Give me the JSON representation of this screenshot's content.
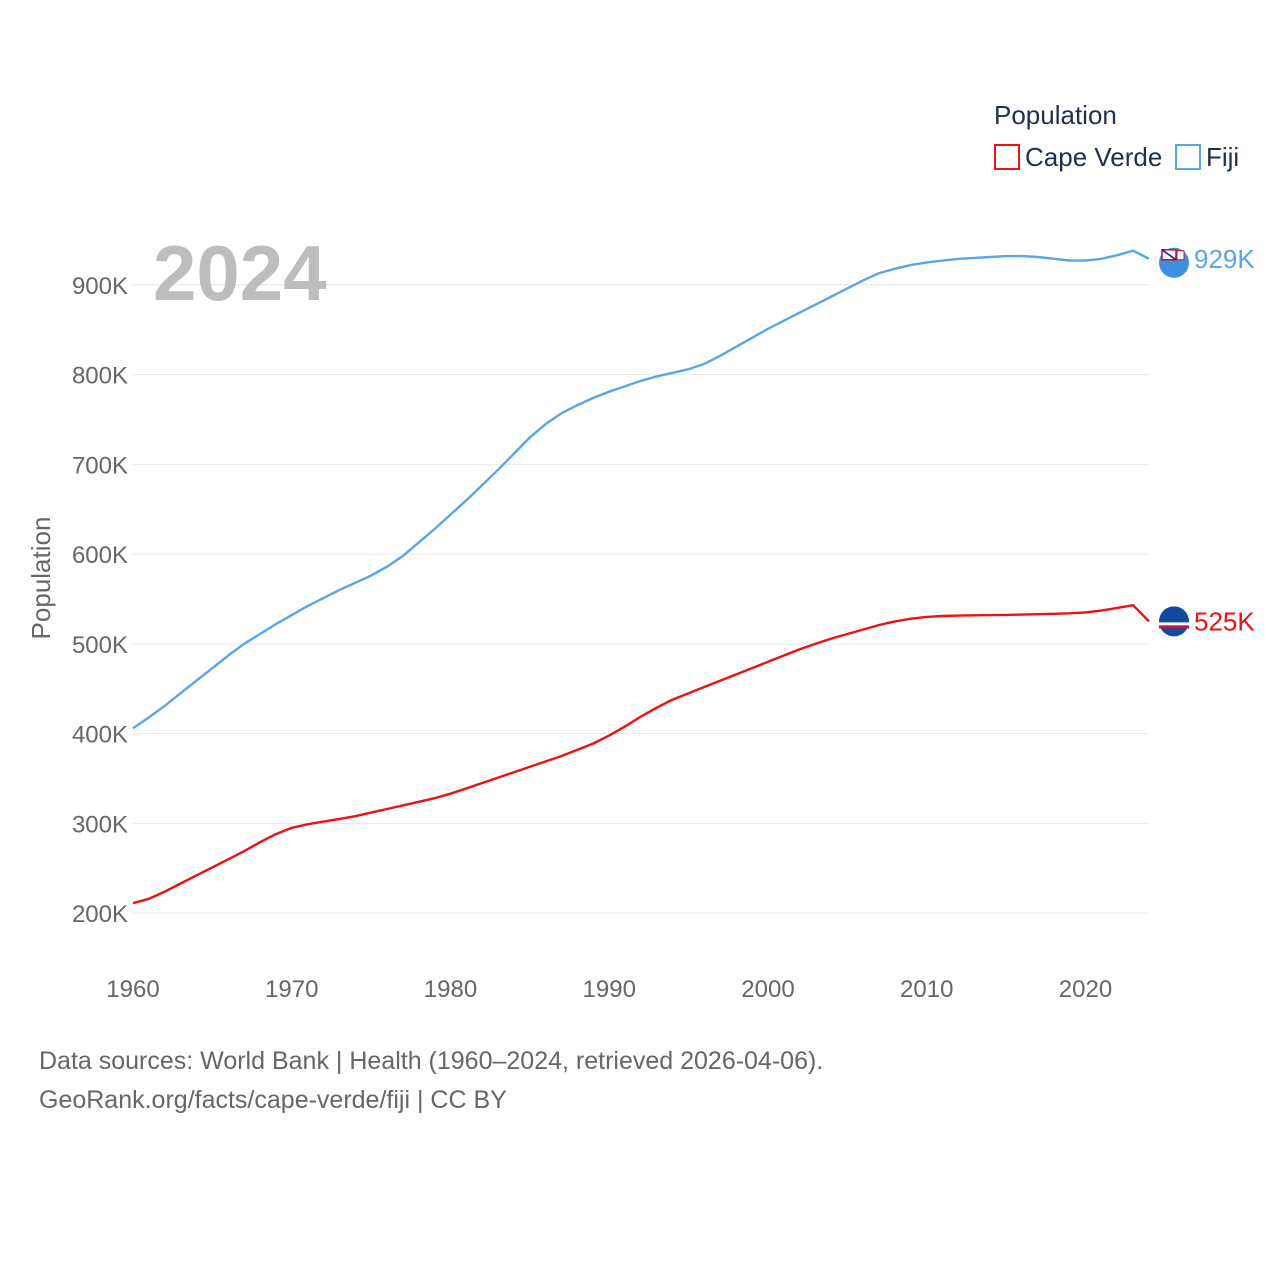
{
  "chart_data": {
    "type": "line",
    "title": "",
    "current_year_label": "2024",
    "xlabel": "",
    "ylabel": "Population",
    "xlim": [
      1960,
      2024
    ],
    "ylim": [
      150000,
      980000
    ],
    "x_ticks": [
      1960,
      1970,
      1980,
      1990,
      2000,
      2010,
      2020
    ],
    "x_tick_labels": [
      "1960",
      "1970",
      "1980",
      "1990",
      "2000",
      "2010",
      "2020"
    ],
    "y_ticks": [
      200000,
      300000,
      400000,
      500000,
      600000,
      700000,
      800000,
      900000
    ],
    "y_tick_labels": [
      "200K",
      "300K",
      "400K",
      "500K",
      "600K",
      "700K",
      "800K",
      "900K"
    ],
    "grid": true,
    "legend": {
      "title": "Population",
      "position": "top-right",
      "entries": [
        "Cape Verde",
        "Fiji"
      ]
    },
    "series": [
      {
        "name": "Cape Verde",
        "color": "#ee1111",
        "flag_icon": "cape-verde-flag-icon",
        "end_label": "525K",
        "points": [
          [
            1960,
            211000
          ],
          [
            1961,
            216000
          ],
          [
            1962,
            224000
          ],
          [
            1963,
            233000
          ],
          [
            1964,
            242000
          ],
          [
            1965,
            251000
          ],
          [
            1966,
            260000
          ],
          [
            1967,
            269000
          ],
          [
            1968,
            279000
          ],
          [
            1969,
            288000
          ],
          [
            1970,
            295000
          ],
          [
            1971,
            299000
          ],
          [
            1972,
            302000
          ],
          [
            1973,
            305000
          ],
          [
            1974,
            308000
          ],
          [
            1975,
            312000
          ],
          [
            1976,
            316000
          ],
          [
            1977,
            320000
          ],
          [
            1978,
            324000
          ],
          [
            1979,
            328000
          ],
          [
            1980,
            333000
          ],
          [
            1981,
            339000
          ],
          [
            1982,
            345000
          ],
          [
            1983,
            351000
          ],
          [
            1984,
            357000
          ],
          [
            1985,
            363000
          ],
          [
            1986,
            369000
          ],
          [
            1987,
            375000
          ],
          [
            1988,
            382000
          ],
          [
            1989,
            389000
          ],
          [
            1990,
            398000
          ],
          [
            1991,
            408000
          ],
          [
            1992,
            419000
          ],
          [
            1993,
            429000
          ],
          [
            1994,
            438000
          ],
          [
            1995,
            445000
          ],
          [
            1996,
            452000
          ],
          [
            1997,
            459000
          ],
          [
            1998,
            466000
          ],
          [
            1999,
            473000
          ],
          [
            2000,
            480000
          ],
          [
            2001,
            487000
          ],
          [
            2002,
            494000
          ],
          [
            2003,
            500000
          ],
          [
            2004,
            506000
          ],
          [
            2005,
            511000
          ],
          [
            2006,
            516000
          ],
          [
            2007,
            521000
          ],
          [
            2008,
            525000
          ],
          [
            2009,
            528000
          ],
          [
            2010,
            530000
          ],
          [
            2011,
            531000
          ],
          [
            2012,
            531500
          ],
          [
            2013,
            531800
          ],
          [
            2014,
            532000
          ],
          [
            2015,
            532300
          ],
          [
            2016,
            532600
          ],
          [
            2017,
            533000
          ],
          [
            2018,
            533500
          ],
          [
            2019,
            534000
          ],
          [
            2020,
            535000
          ],
          [
            2021,
            537000
          ],
          [
            2022,
            540000
          ],
          [
            2023,
            543000
          ],
          [
            2024,
            525000
          ]
        ]
      },
      {
        "name": "Fiji",
        "color": "#5aa5e6",
        "flag_icon": "fiji-flag-icon",
        "end_label": "929K",
        "points": [
          [
            1960,
            406000
          ],
          [
            1961,
            418000
          ],
          [
            1962,
            431000
          ],
          [
            1963,
            445000
          ],
          [
            1964,
            459000
          ],
          [
            1965,
            473000
          ],
          [
            1966,
            487000
          ],
          [
            1967,
            500000
          ],
          [
            1968,
            511000
          ],
          [
            1969,
            522000
          ],
          [
            1970,
            532000
          ],
          [
            1971,
            542000
          ],
          [
            1972,
            551000
          ],
          [
            1973,
            560000
          ],
          [
            1974,
            568000
          ],
          [
            1975,
            576000
          ],
          [
            1976,
            586000
          ],
          [
            1977,
            598000
          ],
          [
            1978,
            613000
          ],
          [
            1979,
            628000
          ],
          [
            1980,
            644000
          ],
          [
            1981,
            660000
          ],
          [
            1982,
            677000
          ],
          [
            1983,
            694000
          ],
          [
            1984,
            712000
          ],
          [
            1985,
            730000
          ],
          [
            1986,
            745000
          ],
          [
            1987,
            757000
          ],
          [
            1988,
            766000
          ],
          [
            1989,
            774000
          ],
          [
            1990,
            781000
          ],
          [
            1991,
            787000
          ],
          [
            1992,
            793000
          ],
          [
            1993,
            798000
          ],
          [
            1994,
            802000
          ],
          [
            1995,
            806000
          ],
          [
            1996,
            812000
          ],
          [
            1997,
            821000
          ],
          [
            1998,
            831000
          ],
          [
            1999,
            841000
          ],
          [
            2000,
            851000
          ],
          [
            2001,
            860000
          ],
          [
            2002,
            869000
          ],
          [
            2003,
            878000
          ],
          [
            2004,
            887000
          ],
          [
            2005,
            896000
          ],
          [
            2006,
            905000
          ],
          [
            2007,
            913000
          ],
          [
            2008,
            918000
          ],
          [
            2009,
            922000
          ],
          [
            2010,
            925000
          ],
          [
            2011,
            927000
          ],
          [
            2012,
            929000
          ],
          [
            2013,
            930000
          ],
          [
            2014,
            931000
          ],
          [
            2015,
            932000
          ],
          [
            2016,
            932000
          ],
          [
            2017,
            931000
          ],
          [
            2018,
            929000
          ],
          [
            2019,
            927000
          ],
          [
            2020,
            927000
          ],
          [
            2021,
            929000
          ],
          [
            2022,
            933000
          ],
          [
            2023,
            938000
          ],
          [
            2024,
            929000
          ]
        ]
      }
    ]
  },
  "footer": {
    "source_line": "Data sources: World Bank | Health (1960–2024, retrieved 2026-04-06).",
    "url_line": "GeoRank.org/facts/cape-verde/fiji | CC BY"
  }
}
